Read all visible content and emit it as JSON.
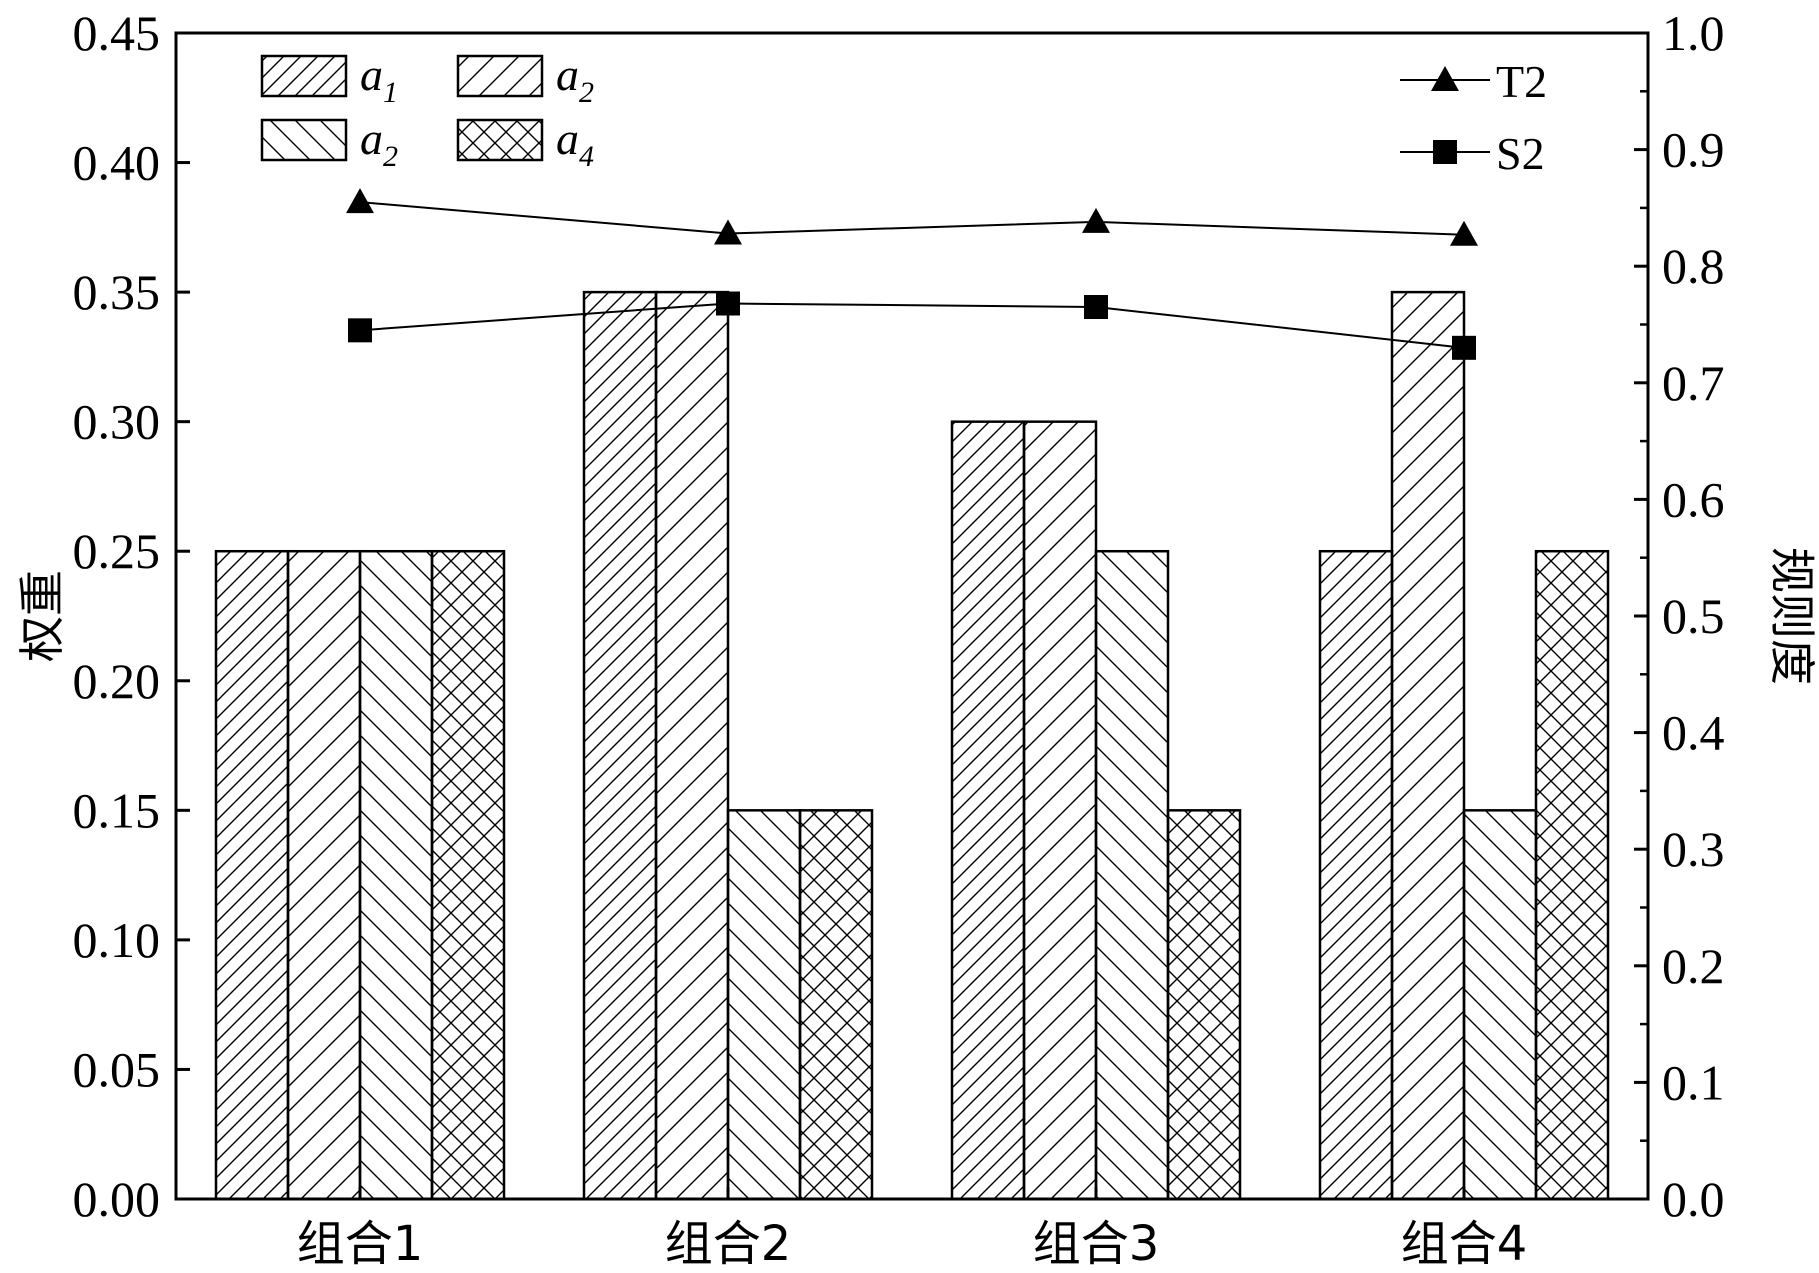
{
  "chart_data": {
    "type": "bar",
    "categories": [
      "组合1",
      "组合2",
      "组合3",
      "组合4"
    ],
    "series": [
      {
        "name": "a1",
        "label_main": "a",
        "label_sub": "1",
        "pattern": "diag-fwd",
        "values": [
          0.25,
          0.35,
          0.3,
          0.25
        ]
      },
      {
        "name": "a2",
        "label_main": "a",
        "label_sub": "2",
        "pattern": "diag-fwd-wide",
        "values": [
          0.25,
          0.35,
          0.3,
          0.35
        ]
      },
      {
        "name": "a2",
        "label_main": "a",
        "label_sub": "2",
        "pattern": "diag-back",
        "values": [
          0.25,
          0.15,
          0.25,
          0.15
        ]
      },
      {
        "name": "a4",
        "label_main": "a",
        "label_sub": "4",
        "pattern": "crosshatch",
        "values": [
          0.25,
          0.15,
          0.15,
          0.25
        ]
      }
    ],
    "line_series": [
      {
        "name": "T2",
        "marker": "triangle",
        "values": [
          0.855,
          0.828,
          0.838,
          0.827
        ]
      },
      {
        "name": "S2",
        "marker": "square",
        "values": [
          0.745,
          0.768,
          0.765,
          0.73
        ]
      }
    ],
    "ylabel": "权重",
    "ylabel_right": "规则度",
    "ylim": [
      0,
      0.45
    ],
    "ylim_right": [
      0,
      1.0
    ],
    "yticks": [
      "0.00",
      "0.05",
      "0.10",
      "0.15",
      "0.20",
      "0.25",
      "0.30",
      "0.35",
      "0.40",
      "0.45"
    ],
    "yticks_right": [
      "0.0",
      "0.1",
      "0.2",
      "0.3",
      "0.4",
      "0.5",
      "0.6",
      "0.7",
      "0.8",
      "0.9",
      "1.0"
    ],
    "grid": false,
    "legend_bars_position": "top-left",
    "legend_lines_position": "top-right"
  }
}
